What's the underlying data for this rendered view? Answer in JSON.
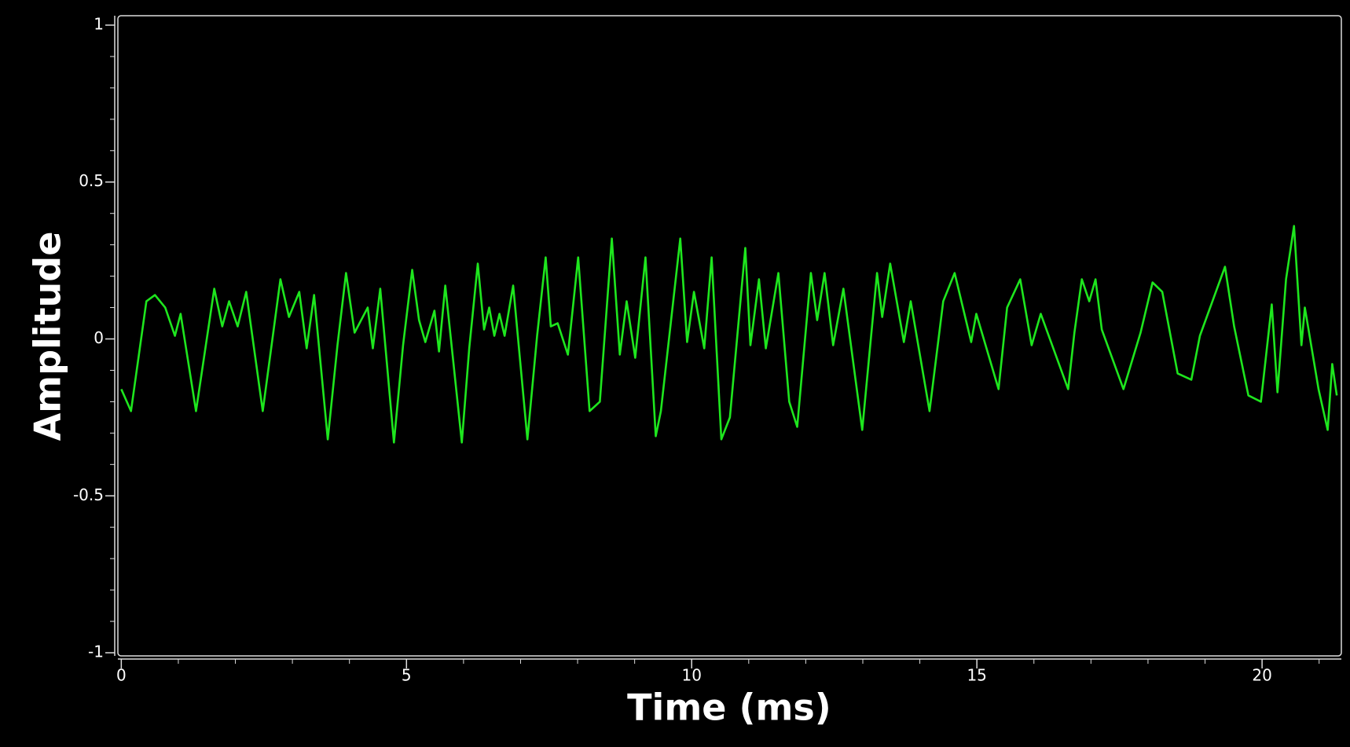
{
  "chart_data": {
    "type": "line",
    "xlabel": "Time (ms)",
    "ylabel": "Amplitude",
    "xlim": [
      -0.06,
      21.39
    ],
    "ylim": [
      -1.01,
      1.03
    ],
    "xticks": [
      0,
      5,
      10,
      15,
      20
    ],
    "yticks": [
      -1,
      -0.5,
      0,
      0.5,
      1
    ],
    "xminorticks": [
      1,
      2,
      3,
      4,
      6,
      7,
      8,
      9,
      11,
      12,
      13,
      14,
      16,
      17,
      18,
      19,
      21
    ],
    "yminorticks": [
      -0.9,
      -0.8,
      -0.7,
      -0.6,
      -0.4,
      -0.3,
      -0.2,
      -0.1,
      0.1,
      0.2,
      0.3,
      0.4,
      0.6,
      0.7,
      0.8,
      0.9
    ],
    "x": [
      0,
      0.17,
      0.44,
      0.59,
      0.77,
      0.94,
      1.04,
      1.31,
      1.63,
      1.77,
      1.89,
      2.04,
      2.19,
      2.48,
      2.79,
      2.94,
      3.12,
      3.25,
      3.38,
      3.62,
      3.79,
      3.94,
      4.09,
      4.32,
      4.41,
      4.54,
      4.78,
      4.94,
      5.1,
      5.22,
      5.33,
      5.49,
      5.57,
      5.68,
      5.97,
      6.1,
      6.25,
      6.36,
      6.45,
      6.54,
      6.63,
      6.72,
      6.87,
      7.12,
      7.29,
      7.44,
      7.53,
      7.65,
      7.83,
      8.01,
      8.21,
      8.39,
      8.6,
      8.74,
      8.86,
      9.01,
      9.19,
      9.37,
      9.46,
      9.8,
      9.92,
      10.04,
      10.22,
      10.35,
      10.52,
      10.67,
      10.94,
      11.03,
      11.18,
      11.3,
      11.52,
      11.71,
      11.85,
      12.09,
      12.2,
      12.33,
      12.48,
      12.66,
      12.99,
      13.25,
      13.34,
      13.48,
      13.72,
      13.84,
      14.17,
      14.41,
      14.61,
      14.9,
      14.99,
      15.38,
      15.53,
      15.76,
      15.96,
      16.12,
      16.6,
      16.71,
      16.84,
      16.97,
      17.08,
      17.19,
      17.57,
      17.87,
      18.08,
      18.25,
      18.52,
      18.76,
      18.91,
      19.35,
      19.51,
      19.76,
      19.98,
      20.17,
      20.27,
      20.42,
      20.56,
      20.69,
      20.75,
      20.99,
      21.15,
      21.23,
      21.31
    ],
    "series": [
      {
        "color": "#1ee61e",
        "values": [
          -0.16,
          -0.23,
          0.12,
          0.14,
          0.1,
          0.01,
          0.08,
          -0.23,
          0.16,
          0.04,
          0.12,
          0.04,
          0.15,
          -0.23,
          0.19,
          0.07,
          0.15,
          -0.03,
          0.14,
          -0.32,
          -0.02,
          0.21,
          0.02,
          0.1,
          -0.03,
          0.16,
          -0.33,
          -0.02,
          0.22,
          0.06,
          -0.01,
          0.09,
          -0.04,
          0.17,
          -0.33,
          -0.03,
          0.24,
          0.03,
          0.1,
          0.01,
          0.08,
          0.01,
          0.17,
          -0.32,
          0.01,
          0.26,
          0.04,
          0.05,
          -0.05,
          0.26,
          -0.23,
          -0.2,
          0.32,
          -0.05,
          0.12,
          -0.06,
          0.26,
          -0.31,
          -0.23,
          0.32,
          -0.01,
          0.15,
          -0.03,
          0.26,
          -0.32,
          -0.25,
          0.29,
          -0.02,
          0.19,
          -0.03,
          0.21,
          -0.2,
          -0.28,
          0.21,
          0.06,
          0.21,
          -0.02,
          0.16,
          -0.29,
          0.21,
          0.07,
          0.24,
          -0.01,
          0.12,
          -0.23,
          0.12,
          0.21,
          -0.01,
          0.08,
          -0.16,
          0.1,
          0.19,
          -0.02,
          0.08,
          -0.16,
          0.02,
          0.19,
          0.12,
          0.19,
          0.03,
          -0.16,
          0.02,
          0.18,
          0.15,
          -0.11,
          -0.13,
          0.01,
          0.23,
          0.04,
          -0.18,
          -0.2,
          0.11,
          -0.17,
          0.19,
          0.36,
          -0.02,
          0.1,
          -0.16,
          -0.29,
          -0.08,
          -0.18
        ]
      }
    ]
  }
}
